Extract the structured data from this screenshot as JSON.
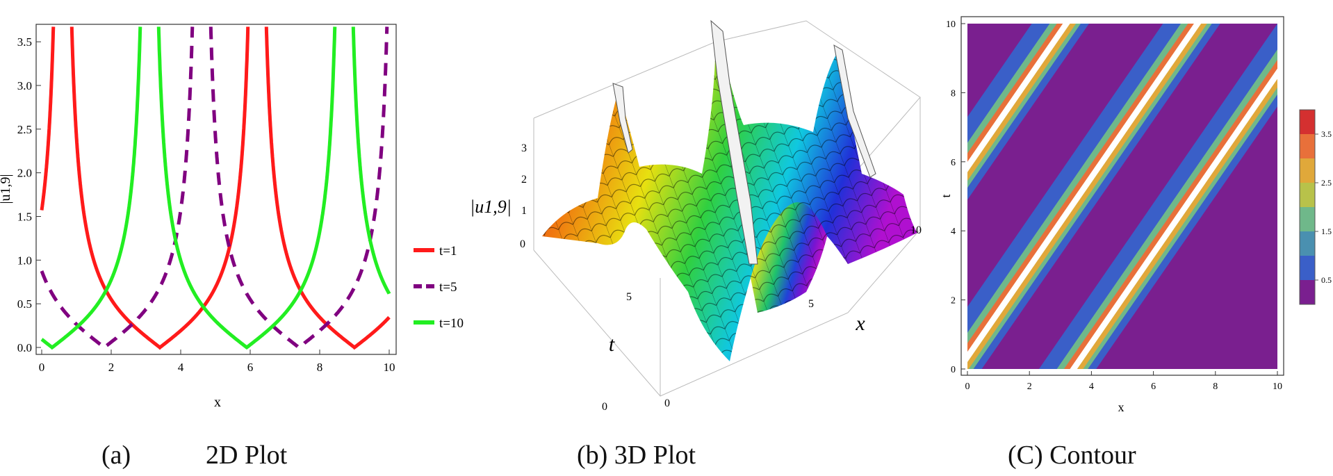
{
  "chart_data": [
    {
      "type": "line",
      "xlabel": "x",
      "ylabel": "|u1,9|",
      "xlim": [
        0,
        10
      ],
      "ylim": [
        0,
        3.7
      ],
      "x_ticks": [
        "0",
        "2",
        "4",
        "6",
        "8",
        "10"
      ],
      "y_ticks": [
        "0.0",
        "0.5",
        "1.0",
        "1.5",
        "2.0",
        "2.5",
        "3.0",
        "3.5"
      ],
      "legend_position": "right",
      "series": [
        {
          "name": "t=1",
          "color": "#ff1a1a",
          "dash": "solid",
          "period": 5.6,
          "x0": 3.4,
          "k": 2.5
        },
        {
          "name": "t=5",
          "color": "#800080",
          "dash": "dashed",
          "period": 5.6,
          "x0": 1.8,
          "k": 2.5
        },
        {
          "name": "t=10",
          "color": "#22ee22",
          "dash": "solid",
          "period": 5.6,
          "x0": 0.3,
          "k": 2.5
        }
      ]
    },
    {
      "type": "surface",
      "xlabel": "x",
      "ylabel": "t",
      "zlabel": "|u1,9|",
      "x_ticks": [
        "0",
        "5",
        "10"
      ],
      "t_ticks": [
        "0",
        "5"
      ],
      "z_ticks": [
        "0",
        "1",
        "2",
        "3"
      ]
    },
    {
      "type": "heatmap",
      "xlabel": "x",
      "ylabel": "t",
      "xlim": [
        0,
        10
      ],
      "ylim": [
        0,
        10
      ],
      "x_ticks": [
        "0",
        "2",
        "4",
        "6",
        "8",
        "10"
      ],
      "y_ticks": [
        "0",
        "2",
        "4",
        "6",
        "8",
        "10"
      ],
      "colorbar_ticks": [
        "0.5",
        "1.5",
        "2.5",
        "3.5"
      ],
      "colorbar_colors": [
        "#7a1f8f",
        "#3a5fc8",
        "#4a90b0",
        "#6fb88a",
        "#b8c24a",
        "#e0a83a",
        "#e8703a",
        "#d43030"
      ]
    }
  ],
  "captions": {
    "a_label": "(a)",
    "a_title": "2D Plot",
    "b": "(b) 3D Plot",
    "c": "(C) Contour"
  }
}
